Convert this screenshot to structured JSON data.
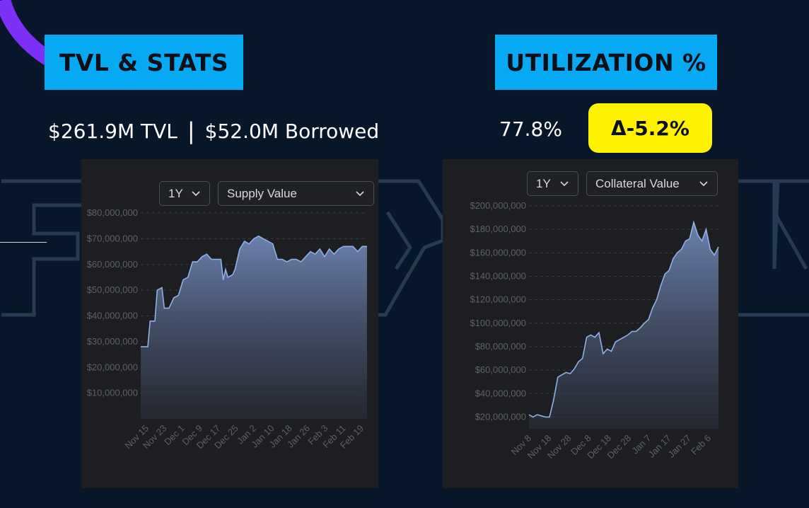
{
  "colors": {
    "background": "#08162a",
    "header_bg": "#06a9f2",
    "delta_badge_bg": "#fff200",
    "panel_bg": "#1d1e21",
    "accent_arc": "#7b2ff7",
    "line": "#8fb1e8"
  },
  "tvl": {
    "header": "TVL & STATS",
    "tvl_value": "$261.9M TVL",
    "separator": "|",
    "borrowed_value": "$52.0M Borrowed"
  },
  "utilization": {
    "header": "UTILIZATION %",
    "value": "77.8%",
    "delta": "Δ-5.2%"
  },
  "supply_panel": {
    "range_label": "1Y",
    "metric_label": "Supply Value"
  },
  "collateral_panel": {
    "range_label": "1Y",
    "metric_label": "Collateral Value"
  },
  "chart_data": [
    {
      "type": "area",
      "ylim": [
        0,
        80000000
      ],
      "yticks": [
        10000000,
        20000000,
        30000000,
        40000000,
        50000000,
        60000000,
        70000000,
        80000000
      ],
      "ytick_labels": [
        "$10,000,000",
        "$20,000,000",
        "$30,000,000",
        "$40,000,000",
        "$50,000,000",
        "$60,000,000",
        "$70,000,000",
        "$80,000,000"
      ],
      "xtick_labels": [
        "Nov 15",
        "Nov 23",
        "Dec 1",
        "Dec 9",
        "Dec 17",
        "Dec 25",
        "Jan 2",
        "Jan 10",
        "Jan 18",
        "Jan 26",
        "Feb 3",
        "Feb 11",
        "Feb 19"
      ],
      "grid": true,
      "series": [
        {
          "x": [
            "Nov 15",
            "Nov 18",
            "Nov 19",
            "Nov 21",
            "Nov 22",
            "Nov 24",
            "Nov 25",
            "Nov 27",
            "Nov 29",
            "Dec 1",
            "Dec 3",
            "Dec 5",
            "Dec 7",
            "Dec 9",
            "Dec 11",
            "Dec 13",
            "Dec 15",
            "Dec 17",
            "Dec 19",
            "Dec 20",
            "Dec 21",
            "Dec 22",
            "Dec 24",
            "Dec 25",
            "Dec 27",
            "Dec 29",
            "Dec 31",
            "Jan 2",
            "Jan 4",
            "Jan 6",
            "Jan 8",
            "Jan 10",
            "Jan 12",
            "Jan 14",
            "Jan 16",
            "Jan 18",
            "Jan 20",
            "Jan 22",
            "Jan 24",
            "Jan 26",
            "Jan 28",
            "Jan 30",
            "Feb 1",
            "Feb 3",
            "Feb 5",
            "Feb 7",
            "Feb 9",
            "Feb 11",
            "Feb 13",
            "Feb 15",
            "Feb 17",
            "Feb 19"
          ],
          "values": [
            28000000,
            28000000,
            38000000,
            38000000,
            50000000,
            51000000,
            43000000,
            43000000,
            47000000,
            48000000,
            54000000,
            55000000,
            61000000,
            61000000,
            63000000,
            64000000,
            62000000,
            62000000,
            62000000,
            54000000,
            58000000,
            55000000,
            56000000,
            58000000,
            66000000,
            69000000,
            68000000,
            70000000,
            71000000,
            70000000,
            69000000,
            68000000,
            62000000,
            62000000,
            61000000,
            62000000,
            62000000,
            61000000,
            63000000,
            65000000,
            64000000,
            66000000,
            63000000,
            66000000,
            64000000,
            66000000,
            67000000,
            67000000,
            67000000,
            65000000,
            67000000,
            67000000
          ]
        }
      ]
    },
    {
      "type": "area",
      "ylim": [
        10000000,
        200000000
      ],
      "yticks": [
        20000000,
        40000000,
        60000000,
        80000000,
        100000000,
        120000000,
        140000000,
        160000000,
        180000000,
        200000000
      ],
      "ytick_labels": [
        "$20,000,000",
        "$40,000,000",
        "$60,000,000",
        "$80,000,000",
        "$100,000,000",
        "$120,000,000",
        "$140,000,000",
        "$160,000,000",
        "$180,000,000",
        "$200,000,000"
      ],
      "xtick_labels": [
        "Nov 8",
        "Nov 18",
        "Nov 28",
        "Dec 8",
        "Dec 18",
        "Dec 28",
        "Jan 7",
        "Jan 17",
        "Jan 27",
        "Feb 6"
      ],
      "grid": true,
      "series": [
        {
          "x": [
            "Nov 8",
            "Nov 10",
            "Nov 12",
            "Nov 14",
            "Nov 16",
            "Nov 18",
            "Nov 20",
            "Nov 22",
            "Nov 24",
            "Nov 26",
            "Nov 28",
            "Nov 30",
            "Dec 2",
            "Dec 4",
            "Dec 6",
            "Dec 8",
            "Dec 10",
            "Dec 12",
            "Dec 14",
            "Dec 16",
            "Dec 18",
            "Dec 20",
            "Dec 22",
            "Dec 24",
            "Dec 26",
            "Dec 28",
            "Dec 30",
            "Jan 1",
            "Jan 3",
            "Jan 5",
            "Jan 7",
            "Jan 9",
            "Jan 11",
            "Jan 13",
            "Jan 15",
            "Jan 17",
            "Jan 19",
            "Jan 21",
            "Jan 23",
            "Jan 25",
            "Jan 27",
            "Jan 29",
            "Jan 31",
            "Feb 2",
            "Feb 4",
            "Feb 6",
            "Feb 8"
          ],
          "values": [
            22000000,
            20000000,
            22000000,
            21000000,
            20000000,
            20000000,
            35000000,
            54000000,
            56000000,
            58000000,
            57000000,
            61000000,
            67000000,
            70000000,
            88000000,
            90000000,
            88000000,
            92000000,
            74000000,
            78000000,
            76000000,
            84000000,
            86000000,
            88000000,
            90000000,
            93000000,
            93000000,
            96000000,
            100000000,
            103000000,
            113000000,
            120000000,
            132000000,
            142000000,
            145000000,
            155000000,
            160000000,
            163000000,
            170000000,
            172000000,
            186000000,
            175000000,
            170000000,
            180000000,
            163000000,
            158000000,
            165000000
          ]
        }
      ]
    }
  ]
}
